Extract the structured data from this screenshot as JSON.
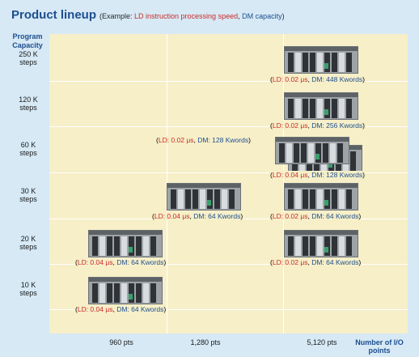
{
  "title": {
    "main": "Product lineup",
    "example_open": "(Example: ",
    "example_ld": "LD instruction processing speed",
    "example_sep": ", ",
    "example_dm": "DM capacity",
    "example_close": ")"
  },
  "chart_data": {
    "type": "scatter",
    "title": "Product lineup",
    "ylabel": "Program Capacity",
    "xlabel": "Number of I/O points",
    "y_categories": [
      "10 K steps",
      "20 K steps",
      "30 K steps",
      "60 K steps",
      "120 K steps",
      "250 K steps"
    ],
    "x_tick_labels": [
      "960 pts",
      "1,280 pts",
      "5,120 pts"
    ],
    "points": [
      {
        "x": "960 pts",
        "y": "10 K steps",
        "ld": "LD: 0.04 μs",
        "dm": "DM: 64 Kwords"
      },
      {
        "x": "960 pts",
        "y": "20 K steps",
        "ld": "LD: 0.04 μs",
        "dm": "DM: 64 Kwords"
      },
      {
        "x": "1,280 pts",
        "y": "30 K steps",
        "ld": "LD: 0.04 μs",
        "dm": "DM: 64 Kwords"
      },
      {
        "x": "5,120 pts",
        "y": "20 K steps",
        "ld": "LD: 0.02 μs",
        "dm": "DM: 64 Kwords"
      },
      {
        "x": "5,120 pts",
        "y": "30 K steps",
        "ld": "LD: 0.02 μs",
        "dm": "DM: 64 Kwords"
      },
      {
        "x": "5,120 pts",
        "y": "60 K steps",
        "ld": "LD: 0.04 μs",
        "dm": "DM: 128 Kwords"
      },
      {
        "x": "5,120 pts",
        "y": "60 K steps",
        "ld": "LD: 0.02 μs",
        "dm": "DM: 128 Kwords"
      },
      {
        "x": "5,120 pts",
        "y": "120 K steps",
        "ld": "LD: 0.02 μs",
        "dm": "DM: 256 Kwords"
      },
      {
        "x": "5,120 pts",
        "y": "250 K steps",
        "ld": "LD: 0.02 μs",
        "dm": "DM: 448 Kwords"
      }
    ],
    "colors": {
      "ld": "#cc2a2a",
      "dm": "#1d4e8f",
      "background": "#d6e9f5",
      "plot_area": "#f6efc8"
    }
  }
}
